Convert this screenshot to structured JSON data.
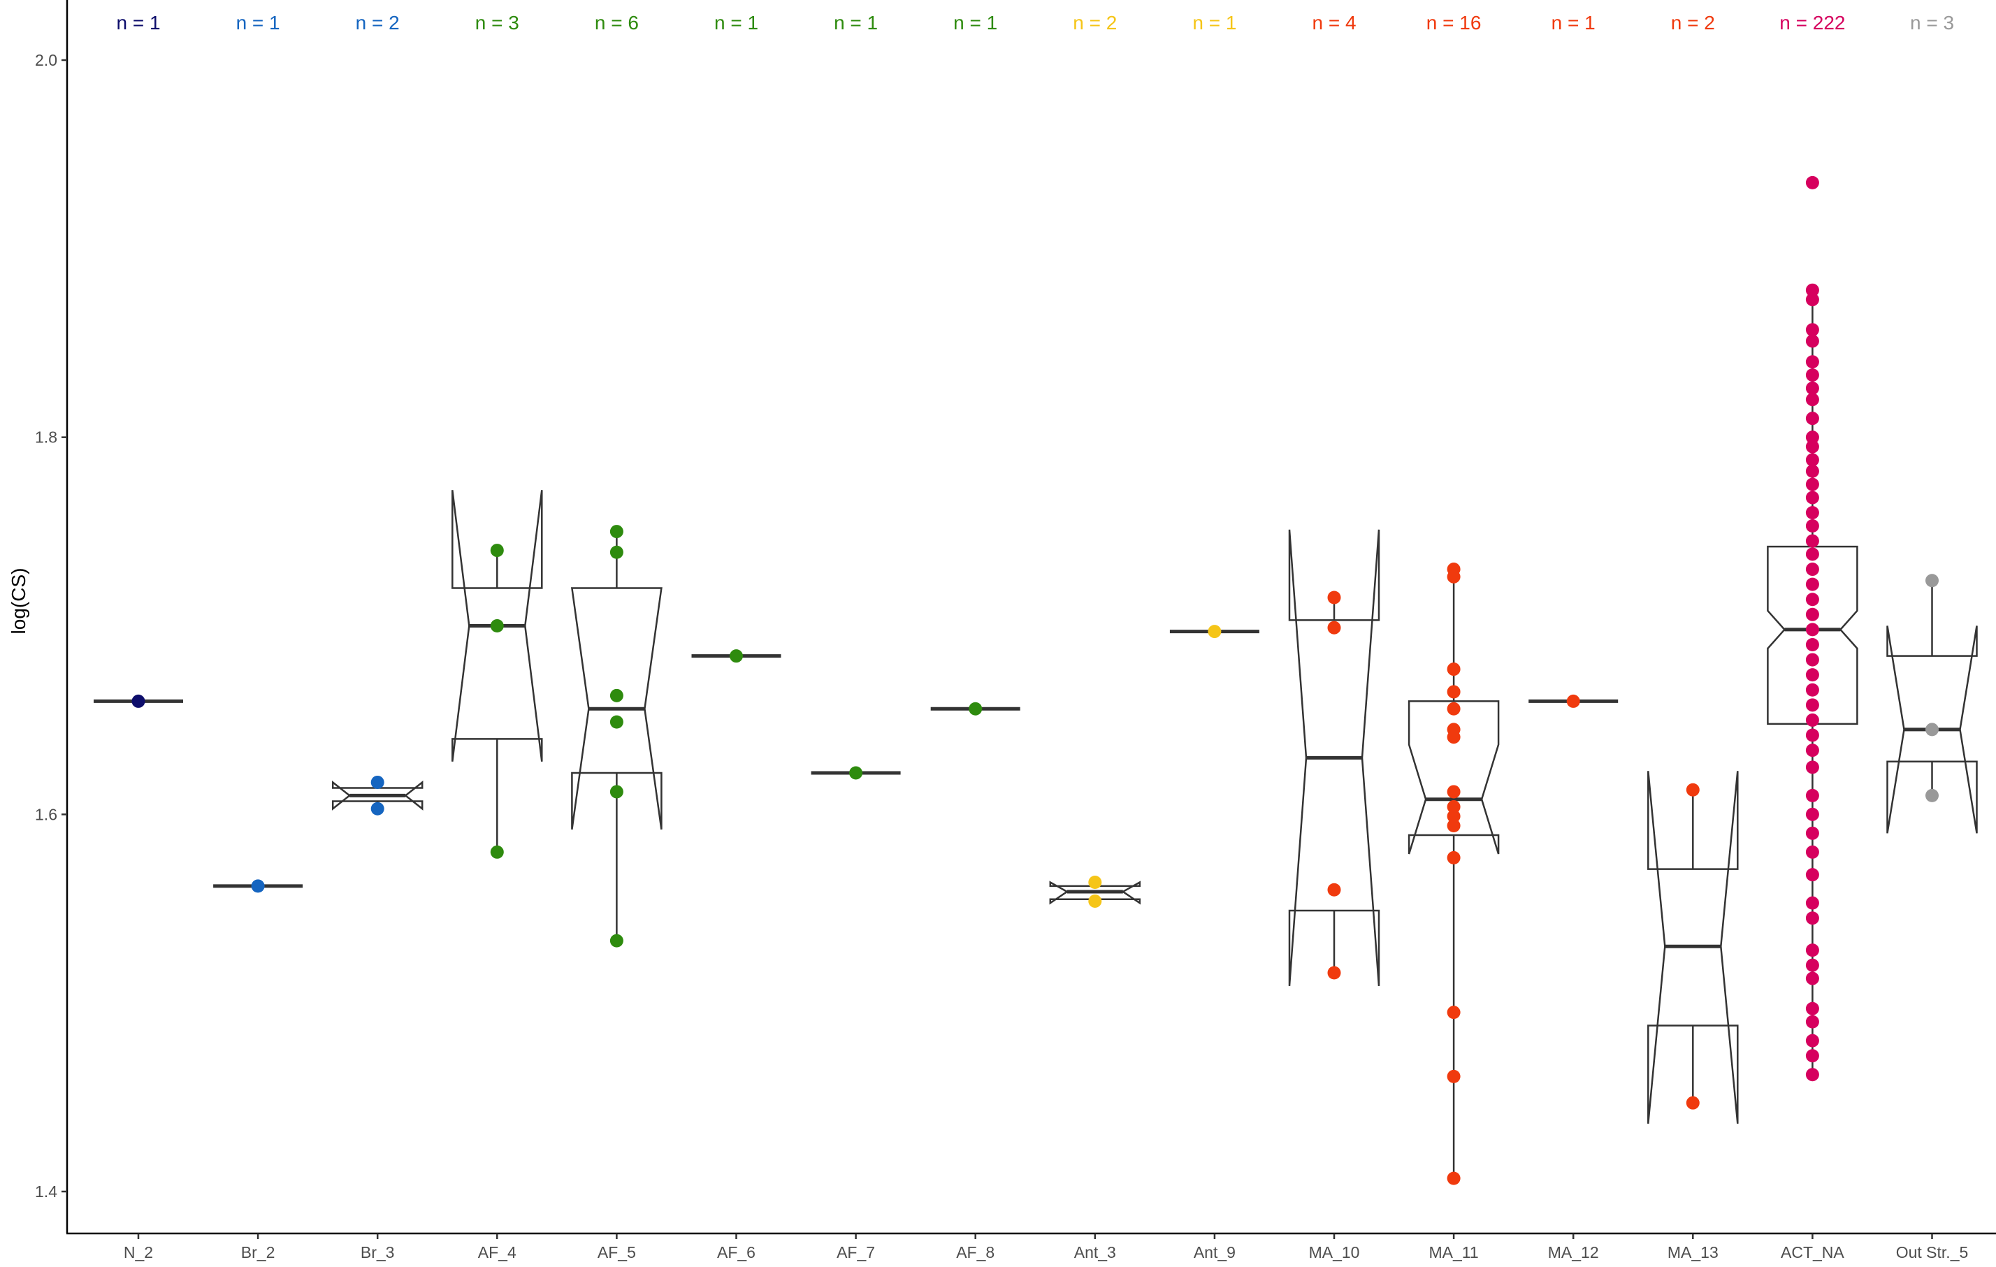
{
  "chart_data": {
    "type": "box",
    "ylabel": "log(CS)",
    "ylim": [
      1.375,
      2.032
    ],
    "yticks": [
      1.4,
      1.6,
      1.8,
      2.0
    ],
    "ytick_labels": [
      "1.4",
      "1.6",
      "1.8",
      "2.0"
    ],
    "grid": false,
    "legend": "none",
    "categories": [
      {
        "label": "N_2",
        "n_label": "n = 1",
        "color": "#0D0D6B",
        "notched": false,
        "box": {
          "q1": 1.66,
          "median": 1.66,
          "q3": 1.66,
          "lower": 1.66,
          "upper": 1.66
        },
        "points": [
          1.66
        ]
      },
      {
        "label": "Br_2",
        "n_label": "n = 1",
        "color": "#1565C0",
        "notched": false,
        "box": {
          "q1": 1.562,
          "median": 1.562,
          "q3": 1.562,
          "lower": 1.562,
          "upper": 1.562
        },
        "points": [
          1.562
        ]
      },
      {
        "label": "Br_3",
        "n_label": "n = 2",
        "color": "#1565C0",
        "notched": true,
        "box": {
          "q1": 1.607,
          "median": 1.61,
          "q3": 1.614,
          "lower": 1.603,
          "upper": 1.617,
          "notch_low": 1.603,
          "notch_high": 1.617
        },
        "points": [
          1.617,
          1.603
        ]
      },
      {
        "label": "AF_4",
        "n_label": "n = 3",
        "color": "#2E8B0E",
        "notched": true,
        "box": {
          "q1": 1.64,
          "median": 1.7,
          "q3": 1.72,
          "lower": 1.58,
          "upper": 1.74,
          "notch_low": 1.628,
          "notch_high": 1.772
        },
        "points": [
          1.74,
          1.7,
          1.58
        ]
      },
      {
        "label": "AF_5",
        "n_label": "n = 6",
        "color": "#2E8B0E",
        "notched": true,
        "box": {
          "q1": 1.622,
          "median": 1.656,
          "q3": 1.72,
          "lower": 1.533,
          "upper": 1.75,
          "notch_low": 1.592,
          "notch_high": 1.72
        },
        "points": [
          1.75,
          1.739,
          1.663,
          1.649,
          1.612,
          1.533
        ]
      },
      {
        "label": "AF_6",
        "n_label": "n = 1",
        "color": "#2E8B0E",
        "notched": false,
        "box": {
          "q1": 1.684,
          "median": 1.684,
          "q3": 1.684,
          "lower": 1.684,
          "upper": 1.684
        },
        "points": [
          1.684
        ]
      },
      {
        "label": "AF_7",
        "n_label": "n = 1",
        "color": "#2E8B0E",
        "notched": false,
        "box": {
          "q1": 1.622,
          "median": 1.622,
          "q3": 1.622,
          "lower": 1.622,
          "upper": 1.622
        },
        "points": [
          1.622
        ]
      },
      {
        "label": "AF_8",
        "n_label": "n = 1",
        "color": "#2E8B0E",
        "notched": false,
        "box": {
          "q1": 1.656,
          "median": 1.656,
          "q3": 1.656,
          "lower": 1.656,
          "upper": 1.656
        },
        "points": [
          1.656
        ]
      },
      {
        "label": "Ant_3",
        "n_label": "n = 2",
        "color": "#F5C518",
        "notched": true,
        "box": {
          "q1": 1.555,
          "median": 1.559,
          "q3": 1.562,
          "lower": 1.554,
          "upper": 1.564,
          "notch_low": 1.553,
          "notch_high": 1.564
        },
        "points": [
          1.564,
          1.554
        ]
      },
      {
        "label": "Ant_9",
        "n_label": "n = 1",
        "color": "#F5C518",
        "notched": false,
        "box": {
          "q1": 1.697,
          "median": 1.697,
          "q3": 1.697,
          "lower": 1.697,
          "upper": 1.697
        },
        "points": [
          1.697
        ]
      },
      {
        "label": "MA_10",
        "n_label": "n = 4",
        "color": "#F03A0E",
        "notched": true,
        "box": {
          "q1": 1.549,
          "median": 1.63,
          "q3": 1.703,
          "lower": 1.516,
          "upper": 1.715,
          "notch_low": 1.509,
          "notch_high": 1.751
        },
        "points": [
          1.715,
          1.699,
          1.56,
          1.516
        ]
      },
      {
        "label": "MA_11",
        "n_label": "n = 16",
        "color": "#F03A0E",
        "notched": true,
        "box": {
          "q1": 1.589,
          "median": 1.608,
          "q3": 1.66,
          "lower": 1.407,
          "upper": 1.73,
          "notch_low": 1.579,
          "notch_high": 1.637
        },
        "points": [
          1.73,
          1.726,
          1.677,
          1.665,
          1.656,
          1.645,
          1.641,
          1.612,
          1.604,
          1.599,
          1.594,
          1.577,
          1.495,
          1.461,
          1.407
        ]
      },
      {
        "label": "MA_12",
        "n_label": "n = 1",
        "color": "#F03A0E",
        "notched": false,
        "box": {
          "q1": 1.66,
          "median": 1.66,
          "q3": 1.66,
          "lower": 1.66,
          "upper": 1.66
        },
        "points": [
          1.66
        ]
      },
      {
        "label": "MA_13",
        "n_label": "n = 2",
        "color": "#F03A0E",
        "notched": true,
        "box": {
          "q1": 1.488,
          "median": 1.53,
          "q3": 1.571,
          "lower": 1.447,
          "upper": 1.613,
          "notch_low": 1.436,
          "notch_high": 1.623
        },
        "points": [
          1.613,
          1.447
        ]
      },
      {
        "label": "ACT_NA",
        "n_label": "n = 222",
        "color": "#D6005E",
        "notched": true,
        "box": {
          "q1": 1.648,
          "median": 1.698,
          "q3": 1.742,
          "lower": 1.462,
          "upper": 1.878,
          "notch_low": 1.688,
          "notch_high": 1.708
        },
        "points": [
          1.935,
          1.878,
          1.873,
          1.857,
          1.851,
          1.84,
          1.833,
          1.826,
          1.82,
          1.81,
          1.8,
          1.795,
          1.788,
          1.782,
          1.775,
          1.768,
          1.76,
          1.753,
          1.745,
          1.738,
          1.73,
          1.722,
          1.714,
          1.706,
          1.698,
          1.69,
          1.682,
          1.674,
          1.666,
          1.658,
          1.65,
          1.642,
          1.634,
          1.625,
          1.61,
          1.6,
          1.59,
          1.58,
          1.568,
          1.553,
          1.545,
          1.528,
          1.52,
          1.513,
          1.497,
          1.49,
          1.48,
          1.472,
          1.462
        ]
      },
      {
        "label": "Out Str._5",
        "n_label": "n = 3",
        "color": "#999999",
        "notched": true,
        "box": {
          "q1": 1.628,
          "median": 1.645,
          "q3": 1.684,
          "lower": 1.61,
          "upper": 1.724,
          "notch_low": 1.59,
          "notch_high": 1.7
        },
        "points": [
          1.724,
          1.645,
          1.61
        ]
      }
    ]
  }
}
